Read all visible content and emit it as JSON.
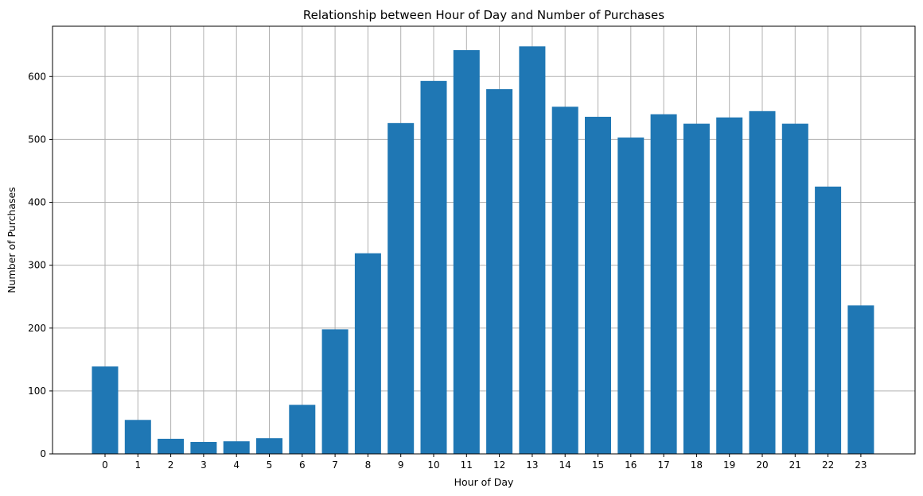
{
  "chart_data": {
    "type": "bar",
    "title": "Relationship between Hour of Day and Number of Purchases",
    "xlabel": "Hour of Day",
    "ylabel": "Number of Purchases",
    "categories": [
      "0",
      "1",
      "2",
      "3",
      "4",
      "5",
      "6",
      "7",
      "8",
      "9",
      "10",
      "11",
      "12",
      "13",
      "14",
      "15",
      "16",
      "17",
      "18",
      "19",
      "20",
      "21",
      "22",
      "23"
    ],
    "values": [
      139,
      54,
      24,
      19,
      20,
      25,
      78,
      198,
      319,
      526,
      593,
      642,
      580,
      648,
      552,
      536,
      503,
      540,
      525,
      535,
      545,
      525,
      425,
      236
    ],
    "ylim": [
      0,
      680
    ],
    "yticks": [
      0,
      100,
      200,
      300,
      400,
      500,
      600
    ],
    "grid": true,
    "bar_color": "#1f77b4",
    "grid_color": "#b0b0b0"
  }
}
